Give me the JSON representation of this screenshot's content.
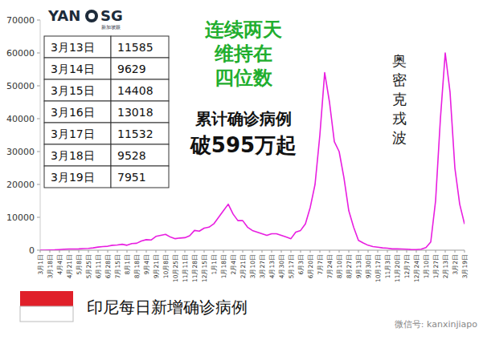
{
  "chart_data": {
    "type": "line",
    "categories": [
      "3月1日",
      null,
      "3月18日",
      null,
      "4月4日",
      null,
      "4月21日",
      null,
      "5月8日",
      null,
      "5月25日",
      null,
      "6月11日",
      null,
      "6月28日",
      null,
      "7月15日",
      null,
      "8月1日",
      null,
      "8月18日",
      null,
      "9月4日",
      null,
      "9月21日",
      null,
      "10月8日",
      null,
      "10月25日",
      null,
      "11月11日",
      null,
      "11月28日",
      null,
      "12月15日",
      null,
      "1月1日",
      null,
      "1月18日",
      null,
      "2月4日",
      null,
      "2月21日",
      null,
      "3月10日",
      null,
      "3月27日",
      null,
      "4月13日",
      null,
      "4月30日",
      null,
      "5月17日",
      null,
      "6月3日",
      null,
      "6月20日",
      null,
      "7月7日",
      null,
      "7月24日",
      null,
      "8月10日",
      null,
      "8月27日",
      null,
      "9月13日",
      null,
      "9月30日",
      null,
      "10月17日",
      null,
      "11月3日",
      null,
      "11月20日",
      null,
      "12月7日",
      null,
      "12月24日",
      null,
      "1月10日",
      null,
      "1月27日",
      null,
      "2月13日",
      null,
      "3月2日",
      null,
      "3月19日"
    ],
    "series": [
      {
        "name": "印尼每日新增确诊病例",
        "color": "#e81ee0",
        "values": [
          0,
          0,
          50,
          100,
          200,
          300,
          350,
          380,
          400,
          500,
          550,
          700,
          950,
          1100,
          1200,
          1500,
          1600,
          1800,
          1500,
          2000,
          2100,
          2800,
          3200,
          3100,
          4200,
          4500,
          4800,
          4000,
          3500,
          3700,
          3800,
          4400,
          6000,
          5800,
          6700,
          7000,
          8000,
          10000,
          12000,
          14000,
          11000,
          9000,
          9000,
          7000,
          6000,
          5500,
          5000,
          4500,
          5000,
          5000,
          4500,
          4000,
          3500,
          5500,
          6000,
          8000,
          13000,
          20000,
          35000,
          54000,
          45000,
          33000,
          30000,
          22000,
          12000,
          7000,
          3000,
          2200,
          1500,
          1100,
          900,
          700,
          600,
          400,
          400,
          350,
          300,
          200,
          200,
          300,
          800,
          2500,
          15000,
          40000,
          60000,
          48000,
          25000,
          14000,
          7951
        ]
      }
    ],
    "ylim": [
      0,
      70000
    ],
    "yticks": [
      0,
      10000,
      20000,
      30000,
      40000,
      50000,
      60000,
      70000
    ],
    "grid": false,
    "legend": "bottom-left",
    "annotations": [
      "奥密克戎波"
    ]
  },
  "headline": [
    "连续两天",
    "维持在",
    "四位数"
  ],
  "subheadline": [
    "累计确诊病例",
    "破595万起"
  ],
  "table": {
    "rows": [
      [
        "3月13日",
        11585
      ],
      [
        "3月14日",
        9629
      ],
      [
        "3月15日",
        14408
      ],
      [
        "3月16日",
        13018
      ],
      [
        "3月17日",
        11532
      ],
      [
        "3月18日",
        9528
      ],
      [
        "3月19日",
        7951
      ]
    ]
  },
  "logo": {
    "left": "YAN",
    "right": "SG",
    "sub": "新加坡眼"
  },
  "watermark": "微信号: kanxinjiapo"
}
